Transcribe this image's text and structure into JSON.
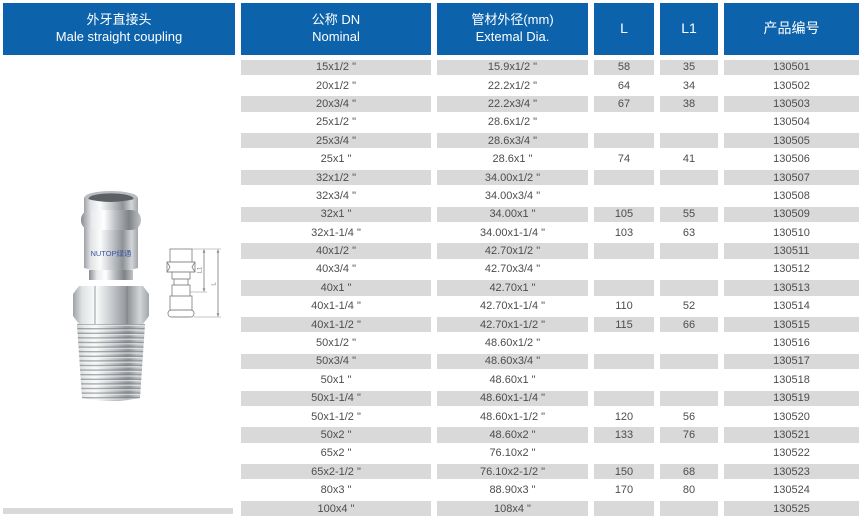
{
  "header": {
    "title_zh": "外牙直接头",
    "title_en": "Male straight coupling",
    "nominal_zh": "公称 DN",
    "nominal_en": "Nominal",
    "dia_zh": "管材外径(mm)",
    "dia_en": "Extemal Dia.",
    "l_label": "L",
    "l1_label": "L1",
    "code_label": "产品编号"
  },
  "figure": {
    "brand_text": "NUTOP绿通",
    "dim_inner_label": "L1",
    "dim_outer_label": "L"
  },
  "colors": {
    "header_blue": "#0d63ab",
    "row_gray": "#d9d9d9",
    "text_gray": "#4d4d4d",
    "brand_blue": "#3a57a8"
  },
  "table": {
    "columns": [
      "公称 DN Nominal",
      "管材外径(mm) Extemal Dia.",
      "L",
      "L1",
      "产品编号"
    ],
    "rows": [
      {
        "nominal": "15x1/2 \"",
        "dia": "15.9x1/2 \"",
        "l": "",
        "l1": "",
        "code": "130501"
      },
      {
        "nominal": "20x1/2 \"",
        "dia": "22.2x1/2 \"",
        "l": "64",
        "l1": "34",
        "code": "130502"
      },
      {
        "nominal": "20x3/4 \"",
        "dia": "22.2x3/4 \"",
        "l": "67",
        "l1": "38",
        "code": "130503"
      },
      {
        "nominal": "25x1/2 \"",
        "dia": "28.6x1/2 \"",
        "l": "",
        "l1": "",
        "code": "130504"
      },
      {
        "nominal": "25x3/4 \"",
        "dia": "28.6x3/4 \"",
        "l": "",
        "l1": "",
        "code": "130505"
      },
      {
        "nominal": "25x1 \"",
        "dia": "28.6x1 \"",
        "l": "74",
        "l1": "41",
        "code": "130506"
      },
      {
        "nominal": "32x1/2 \"",
        "dia": "34.00x1/2 \"",
        "l": "",
        "l1": "",
        "code": "130507"
      },
      {
        "nominal": "32x3/4 \"",
        "dia": "34.00x3/4 \"",
        "l": "",
        "l1": "",
        "code": "130508"
      },
      {
        "nominal": "32x1 \"",
        "dia": "34.00x1 \"",
        "l": "105",
        "l1": "55",
        "code": "130509"
      },
      {
        "nominal": "32x1-1/4 \"",
        "dia": "34.00x1-1/4 \"",
        "l": "103",
        "l1": "63",
        "code": "130510"
      },
      {
        "nominal": "40x1/2 \"",
        "dia": "42.70x1/2 \"",
        "l": "",
        "l1": "",
        "code": "130511"
      },
      {
        "nominal": "40x3/4 \"",
        "dia": "42.70x3/4 \"",
        "l": "",
        "l1": "",
        "code": "130512"
      },
      {
        "nominal": "40x1 \"",
        "dia": "42.70x1 \"",
        "l": "",
        "l1": "",
        "code": "130513"
      },
      {
        "nominal": "40x1-1/4 \"",
        "dia": "42.70x1-1/4 \"",
        "l": "110",
        "l1": "52",
        "code": "130514"
      },
      {
        "nominal": "40x1-1/2 \"",
        "dia": "42.70x1-1/2 \"",
        "l": "115",
        "l1": "66",
        "code": "130515"
      },
      {
        "nominal": "50x1/2 \"",
        "dia": "48.60x1/2 \"",
        "l": "",
        "l1": "",
        "code": "130516"
      },
      {
        "nominal": "50x3/4 \"",
        "dia": "48.60x3/4 \"",
        "l": "",
        "l1": "",
        "code": "130517"
      },
      {
        "nominal": "50x1 \"",
        "dia": "48.60x1 \"",
        "l": "",
        "l1": "",
        "code": "130518"
      },
      {
        "nominal": "50x1-1/4 \"",
        "dia": "48.60x1-1/4 \"",
        "l": "",
        "l1": "",
        "code": "130519"
      },
      {
        "nominal": "50x1-1/2 \"",
        "dia": "48.60x1-1/2 \"",
        "l": "120",
        "l1": "56",
        "code": "130520"
      },
      {
        "nominal": "50x2 \"",
        "dia": "48.60x2 \"",
        "l": "133",
        "l1": "76",
        "code": "130521"
      },
      {
        "nominal": "65x2 \"",
        "dia": "76.10x2 \"",
        "l": "",
        "l1": "",
        "code": "130522"
      },
      {
        "nominal": "65x2-1/2 \"",
        "dia": "76.10x2-1/2 \"",
        "l": "150",
        "l1": "68",
        "code": "130523"
      },
      {
        "nominal": "80x3 \"",
        "dia": "88.90x3 \"",
        "l": "170",
        "l1": "80",
        "code": "130524"
      },
      {
        "nominal": "100x4 \"",
        "dia": "108x4 \"",
        "l": "",
        "l1": "",
        "code": "130525"
      }
    ],
    "first_row_l": "58",
    "first_row_l1": "35"
  }
}
